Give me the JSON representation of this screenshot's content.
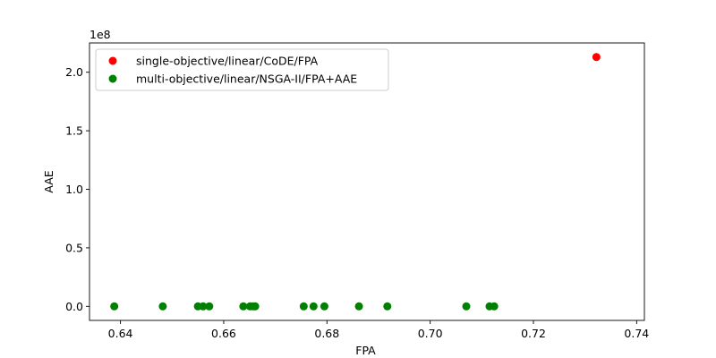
{
  "chart_data": {
    "type": "scatter",
    "xlabel": "FPA",
    "ylabel": "AAE",
    "offset_label": "1e8",
    "xlim": [
      0.634,
      0.7415
    ],
    "ylim": [
      -12000000,
      225000000
    ],
    "x_ticks": [
      0.64,
      0.66,
      0.68,
      0.7,
      0.72,
      0.74
    ],
    "x_tick_labels": [
      "0.64",
      "0.66",
      "0.68",
      "0.70",
      "0.72",
      "0.74"
    ],
    "y_ticks": [
      0,
      50000000,
      100000000,
      150000000,
      200000000
    ],
    "y_tick_labels": [
      "0.0",
      "0.5",
      "1.0",
      "1.5",
      "2.0"
    ],
    "grid": false,
    "legend_position": "top-left",
    "series": [
      {
        "name": "single-objective/linear/CoDE/FPA",
        "color": "#ff0000",
        "points": [
          [
            0.7322,
            213000000
          ]
        ]
      },
      {
        "name": "multi-objective/linear/NSGA-II/FPA+AAE",
        "color": "#008000",
        "points": [
          [
            0.6388,
            0
          ],
          [
            0.6482,
            0
          ],
          [
            0.655,
            0
          ],
          [
            0.656,
            0
          ],
          [
            0.6572,
            0
          ],
          [
            0.6638,
            0
          ],
          [
            0.6651,
            0
          ],
          [
            0.6657,
            0
          ],
          [
            0.6661,
            0
          ],
          [
            0.6755,
            0
          ],
          [
            0.6774,
            0
          ],
          [
            0.6795,
            0
          ],
          [
            0.6862,
            0
          ],
          [
            0.6917,
            0
          ],
          [
            0.707,
            0
          ],
          [
            0.7115,
            0
          ],
          [
            0.7124,
            0
          ]
        ]
      }
    ]
  }
}
